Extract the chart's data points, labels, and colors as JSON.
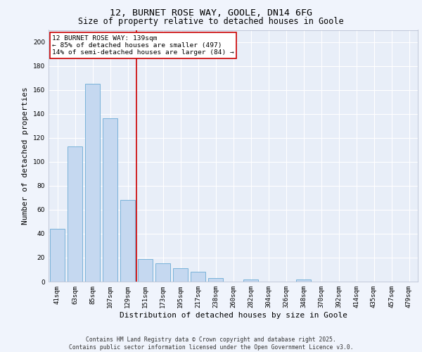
{
  "title_line1": "12, BURNET ROSE WAY, GOOLE, DN14 6FG",
  "title_line2": "Size of property relative to detached houses in Goole",
  "xlabel": "Distribution of detached houses by size in Goole",
  "ylabel": "Number of detached properties",
  "categories": [
    "41sqm",
    "63sqm",
    "85sqm",
    "107sqm",
    "129sqm",
    "151sqm",
    "173sqm",
    "195sqm",
    "217sqm",
    "238sqm",
    "260sqm",
    "282sqm",
    "304sqm",
    "326sqm",
    "348sqm",
    "370sqm",
    "392sqm",
    "414sqm",
    "435sqm",
    "457sqm",
    "479sqm"
  ],
  "values": [
    44,
    113,
    165,
    136,
    68,
    19,
    15,
    11,
    8,
    3,
    0,
    2,
    0,
    0,
    2,
    0,
    0,
    0,
    0,
    0,
    0
  ],
  "bar_color": "#c5d8f0",
  "bar_edgecolor": "#6aaad4",
  "vline_x": 4.5,
  "vline_color": "#cc0000",
  "annotation_text": "12 BURNET ROSE WAY: 139sqm\n← 85% of detached houses are smaller (497)\n14% of semi-detached houses are larger (84) →",
  "annotation_box_color": "#ffffff",
  "annotation_box_edgecolor": "#cc0000",
  "ylim": [
    0,
    210
  ],
  "yticks": [
    0,
    20,
    40,
    60,
    80,
    100,
    120,
    140,
    160,
    180,
    200
  ],
  "background_color": "#e8eef8",
  "fig_background_color": "#f0f4fc",
  "grid_color": "#ffffff",
  "footnote": "Contains HM Land Registry data © Crown copyright and database right 2025.\nContains public sector information licensed under the Open Government Licence v3.0.",
  "title_fontsize": 9.5,
  "subtitle_fontsize": 8.5,
  "tick_fontsize": 6.5,
  "ylabel_fontsize": 8,
  "xlabel_fontsize": 8,
  "annotation_fontsize": 6.8,
  "footnote_fontsize": 5.8
}
